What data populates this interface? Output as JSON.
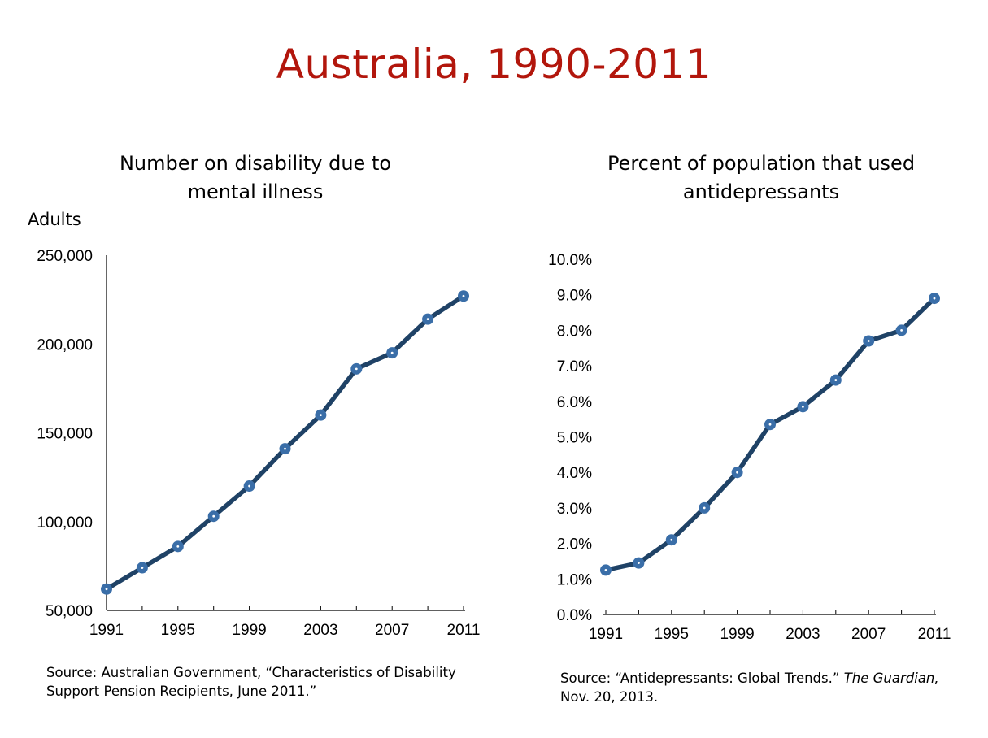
{
  "page": {
    "title": "Australia, 1990-2011"
  },
  "left": {
    "title_line1": "Number on disability due to",
    "title_line2": "mental illness",
    "y_unit": "Adults",
    "source_line1": "Source:  Australian Government, “Characteristics of Disability",
    "source_line2": "Support Pension Recipients, June 2011.”"
  },
  "right": {
    "title_line1": "Percent of population that used",
    "title_line2": "antidepressants",
    "source_prefix": "Source:  “Antidepressants: Global Trends.”",
    "source_italic": "The Guardian,",
    "source_line2": "Nov. 20, 2013."
  },
  "chart_data": [
    {
      "type": "line",
      "title": "Number on disability due to mental illness",
      "ylabel": "Adults",
      "x": [
        1991,
        1993,
        1995,
        1997,
        1999,
        2001,
        2003,
        2005,
        2007,
        2009,
        2011
      ],
      "values": [
        62000,
        74000,
        86000,
        103000,
        120000,
        141000,
        160000,
        186000,
        195000,
        214000,
        227000
      ],
      "ylim": [
        50000,
        250000
      ],
      "yticks": [
        50000,
        100000,
        150000,
        200000,
        250000
      ],
      "ytick_labels": [
        "50,000",
        "100,000",
        "150,000",
        "200,000",
        "250,000"
      ],
      "xtick_labels": [
        "1991",
        "1995",
        "1999",
        "2003",
        "2007",
        "2011"
      ],
      "xtick_values": [
        1991,
        1995,
        1999,
        2003,
        2007,
        2011
      ],
      "line_color": "#1f4266",
      "marker_color": "#3a6ea8",
      "grid": false
    },
    {
      "type": "line",
      "title": "Percent of population that used antidepressants",
      "x": [
        1991,
        1993,
        1995,
        1997,
        1999,
        2001,
        2003,
        2005,
        2007,
        2009,
        2011
      ],
      "values": [
        1.25,
        1.45,
        2.1,
        3.0,
        4.0,
        5.35,
        5.85,
        6.6,
        7.7,
        8.0,
        8.9
      ],
      "ylim": [
        0,
        10
      ],
      "yticks": [
        0,
        1,
        2,
        3,
        4,
        5,
        6,
        7,
        8,
        9,
        10
      ],
      "ytick_labels": [
        "0.0%",
        "1.0%",
        "2.0%",
        "3.0%",
        "4.0%",
        "5.0%",
        "6.0%",
        "7.0%",
        "8.0%",
        "9.0%",
        "10.0%"
      ],
      "xtick_labels": [
        "1991",
        "1995",
        "1999",
        "2003",
        "2007",
        "2011"
      ],
      "xtick_values": [
        1991,
        1995,
        1999,
        2003,
        2007,
        2011
      ],
      "line_color": "#1f4266",
      "marker_color": "#3a6ea8",
      "grid": false
    }
  ]
}
